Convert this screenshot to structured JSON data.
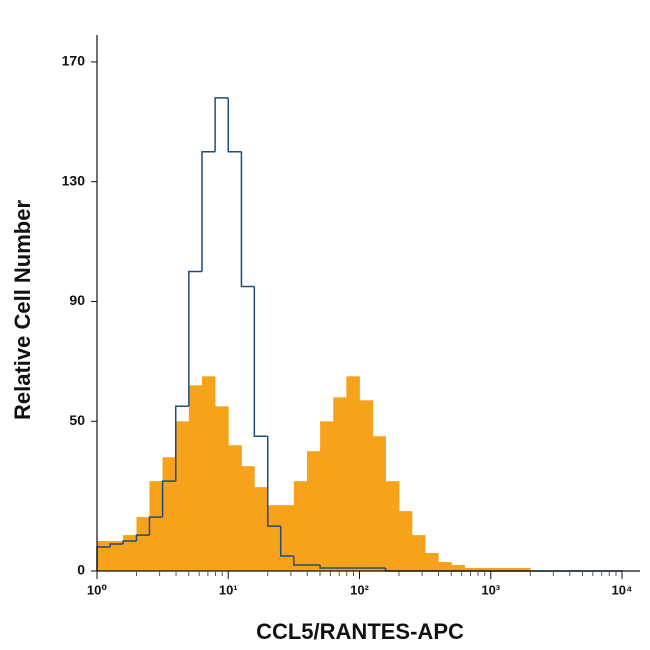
{
  "chart_data": {
    "type": "histogram",
    "xlabel": "CCL5/RANTES-APC",
    "ylabel": "Relative Cell Number",
    "xscale": "log",
    "xlim": [
      1,
      10000
    ],
    "ylim": [
      0,
      183
    ],
    "xticks": [
      {
        "value": 1,
        "label": "10⁰"
      },
      {
        "value": 10,
        "label": "10¹"
      },
      {
        "value": 100,
        "label": "10²"
      },
      {
        "value": 1000,
        "label": "10³"
      },
      {
        "value": 10000,
        "label": "10⁴"
      }
    ],
    "yticks": [
      0,
      50,
      90,
      130,
      170
    ],
    "bins": [
      1,
      1.26,
      1.58,
      2,
      2.51,
      3.16,
      3.98,
      5.01,
      6.31,
      7.94,
      10,
      12.6,
      15.8,
      20,
      25.1,
      31.6,
      39.8,
      50.1,
      63.1,
      79.4,
      100,
      126,
      158,
      200,
      251,
      316,
      398,
      501,
      631,
      794,
      1000,
      1259,
      1585,
      1995,
      2512,
      3162,
      3981,
      5012,
      6310,
      7943,
      10000
    ],
    "series": [
      {
        "color": "#f7a21b",
        "style": "filled",
        "values": [
          10,
          10,
          12,
          18,
          30,
          38,
          50,
          62,
          65,
          55,
          42,
          35,
          28,
          22,
          22,
          30,
          40,
          50,
          58,
          65,
          57,
          45,
          30,
          20,
          12,
          6,
          3,
          2,
          1,
          1,
          1,
          1,
          1,
          0,
          0,
          0,
          0,
          0,
          0,
          0
        ]
      },
      {
        "color": "#1f4e79",
        "style": "outline",
        "values": [
          8,
          9,
          10,
          12,
          18,
          30,
          55,
          100,
          140,
          158,
          140,
          95,
          45,
          15,
          5,
          2,
          2,
          1,
          1,
          1,
          1,
          1,
          0,
          0,
          0,
          0,
          0,
          0,
          0,
          0,
          0,
          0,
          0,
          0,
          0,
          0,
          0,
          0,
          0,
          0
        ]
      }
    ]
  }
}
